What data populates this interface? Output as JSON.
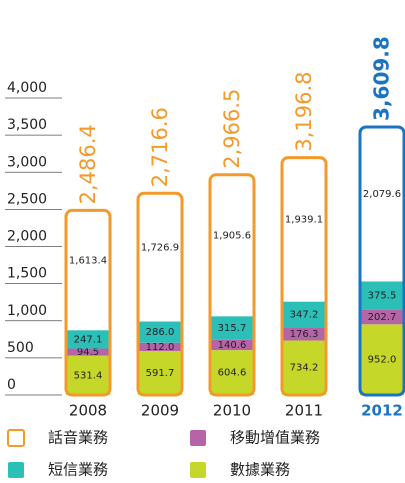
{
  "chart_data": {
    "type": "stacked_bar",
    "categories": [
      "2008",
      "2009",
      "2010",
      "2011",
      "2012"
    ],
    "series": [
      {
        "name": "數據業務",
        "color": "#c5d82a",
        "values": [
          531.4,
          591.7,
          604.6,
          734.2,
          952.0
        ],
        "value_labels": [
          "531.4",
          "591.7",
          "604.6",
          "734.2",
          "952.0"
        ]
      },
      {
        "name": "移動增值業務",
        "color": "#b565a7",
        "values": [
          94.5,
          112.0,
          140.6,
          176.3,
          202.7
        ],
        "value_labels": [
          "94.5",
          "112.0",
          "140.6",
          "176.3",
          "202.7"
        ]
      },
      {
        "name": "短信業務",
        "color": "#2bbfb8",
        "values": [
          247.1,
          286.0,
          315.7,
          347.2,
          375.5
        ],
        "value_labels": [
          "247.1",
          "286.0",
          "315.7",
          "347.2",
          "375.5"
        ]
      },
      {
        "name": "話音業務",
        "color": "#ffffff",
        "values": [
          1613.4,
          1726.9,
          1905.6,
          1939.1,
          2079.6
        ],
        "value_labels": [
          "1,613.4",
          "1,726.9",
          "1,905.6",
          "1,939.1",
          "2,079.6"
        ]
      }
    ],
    "totals": [
      2486.4,
      2716.6,
      2966.5,
      3196.8,
      3609.8
    ],
    "total_labels": [
      "2,486.4",
      "2,716.6",
      "2,966.5",
      "3,196.8",
      "3,609.8"
    ],
    "border_color": "#f39a2b",
    "highlight_index": 4,
    "highlight_color": "#1a74c4",
    "ylim": [
      0,
      4000
    ],
    "yticks": [
      0,
      500,
      {
        "value": 1000,
        "label": "1,000"
      },
      {
        "value": 1500,
        "label": "1,500"
      },
      {
        "value": 2000,
        "label": "2,000"
      },
      {
        "value": 2500,
        "label": "2,500"
      },
      {
        "value": 3000,
        "label": "3,000"
      },
      {
        "value": 3500,
        "label": "3,500"
      },
      {
        "value": 4000,
        "label": "4,000"
      }
    ]
  }
}
